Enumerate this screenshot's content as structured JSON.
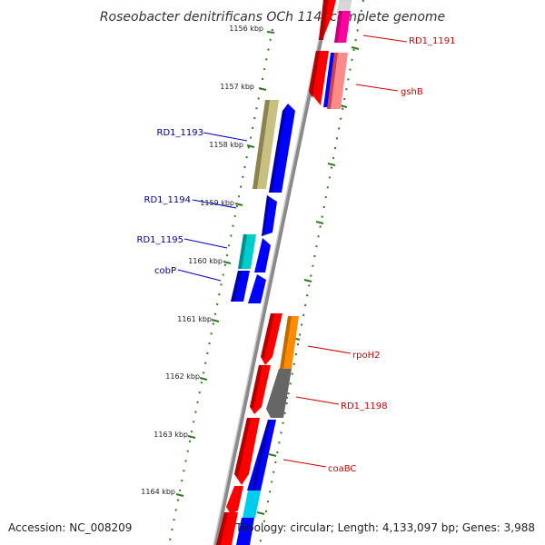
{
  "title": "Roseobacter denitrificans OCh 114, complete genome",
  "accession": "Accession: NC_008209",
  "summary": "Topology: circular; Length: 4,133,097 bp; Genes: 3,988",
  "ticks": [
    "1156 kbp",
    "1157 kbp",
    "1158 kbp",
    "1159 kbp",
    "1160 kbp",
    "1161 kbp",
    "1162 kbp",
    "1163 kbp",
    "1164 kbp"
  ],
  "labels": {
    "rd1_1191": "RD1_1191",
    "gshb": "gshB",
    "rd1_1193": "RD1_1193",
    "rd1_1194": "RD1_1194",
    "rd1_1195": "RD1_1195",
    "cobp": "cobP",
    "rpoh2": "rpoH2",
    "rd1_1198": "RD1_1198",
    "coabc": "coaBC"
  },
  "colors": {
    "forward_label": "#cc0000",
    "reverse_label": "#000099",
    "tick_mark": "#2f7a1f",
    "backbone": "#888888"
  }
}
